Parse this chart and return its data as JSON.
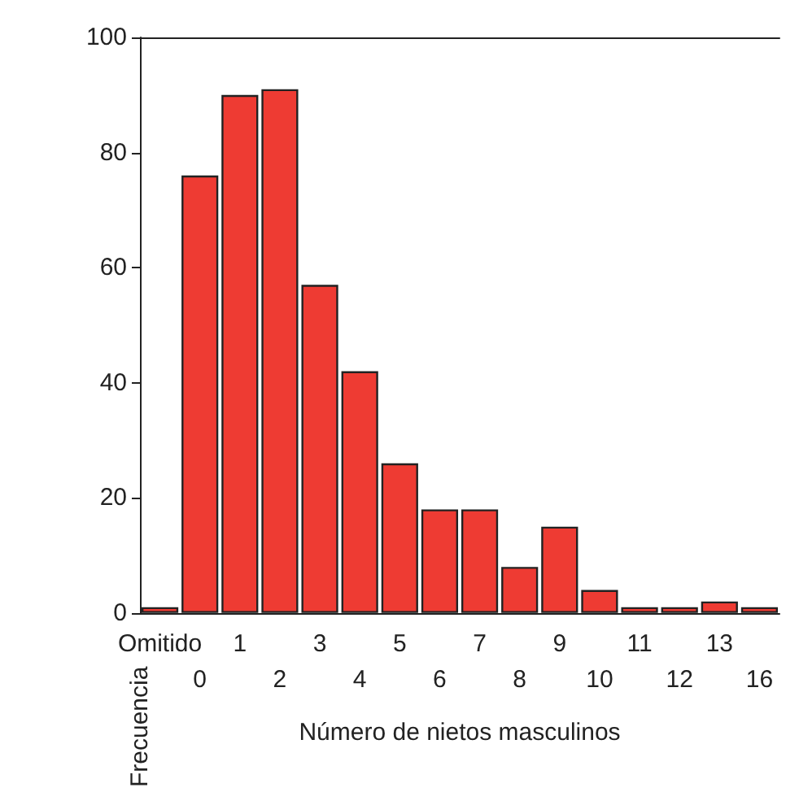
{
  "chart_data": {
    "type": "bar",
    "xlabel": "Número de nietos masculinos",
    "ylabel": "Frecuencia",
    "categories": [
      "Omitido",
      "0",
      "1",
      "2",
      "3",
      "4",
      "5",
      "6",
      "7",
      "8",
      "9",
      "10",
      "11",
      "12",
      "13",
      "16"
    ],
    "values": [
      1,
      76,
      90,
      91,
      57,
      42,
      26,
      18,
      18,
      8,
      15,
      4,
      1,
      1,
      2,
      1
    ],
    "color": "#ee3b33",
    "ylim": [
      0,
      100
    ],
    "yticks": [
      0,
      20,
      40,
      60,
      80,
      100
    ],
    "grid": false
  }
}
